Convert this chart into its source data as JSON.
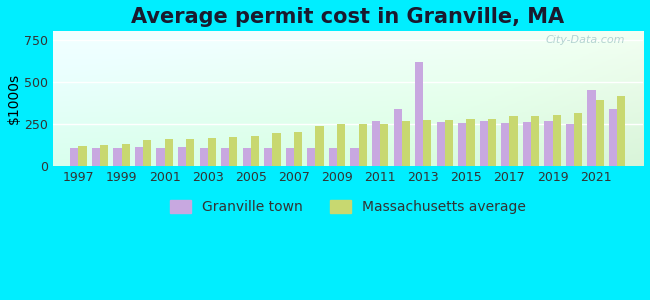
{
  "title": "Average permit cost in Granville, MA",
  "ylabel": "$1000s",
  "background_color": "#00eeff",
  "plot_bg_colors": [
    "#ffffff",
    "#e8f5e8"
  ],
  "years": [
    1997,
    1998,
    1999,
    2000,
    2001,
    2002,
    2003,
    2004,
    2005,
    2006,
    2007,
    2008,
    2009,
    2010,
    2011,
    2012,
    2013,
    2014,
    2015,
    2016,
    2017,
    2018,
    2019,
    2020,
    2021,
    2022
  ],
  "granville": [
    105,
    110,
    108,
    112,
    108,
    112,
    108,
    110,
    108,
    110,
    108,
    110,
    108,
    110,
    270,
    340,
    620,
    260,
    255,
    265,
    258,
    260,
    270,
    248,
    450,
    340
  ],
  "ma_avg": [
    120,
    125,
    130,
    155,
    160,
    160,
    165,
    175,
    180,
    195,
    205,
    240,
    248,
    248,
    252,
    270,
    275,
    275,
    280,
    280,
    295,
    300,
    305,
    315,
    390,
    415
  ],
  "granville_color": "#c8a8e0",
  "ma_color": "#c8d870",
  "granville_label": "Granville town",
  "ma_label": "Massachusetts average",
  "yticks": [
    0,
    250,
    500,
    750
  ],
  "ylim": [
    0,
    800
  ],
  "title_fontsize": 15,
  "axis_fontsize": 10,
  "tick_fontsize": 9,
  "legend_fontsize": 10,
  "watermark": "City-Data.com",
  "grid_color": "#dddddd",
  "title_color": "#1a1a2e"
}
